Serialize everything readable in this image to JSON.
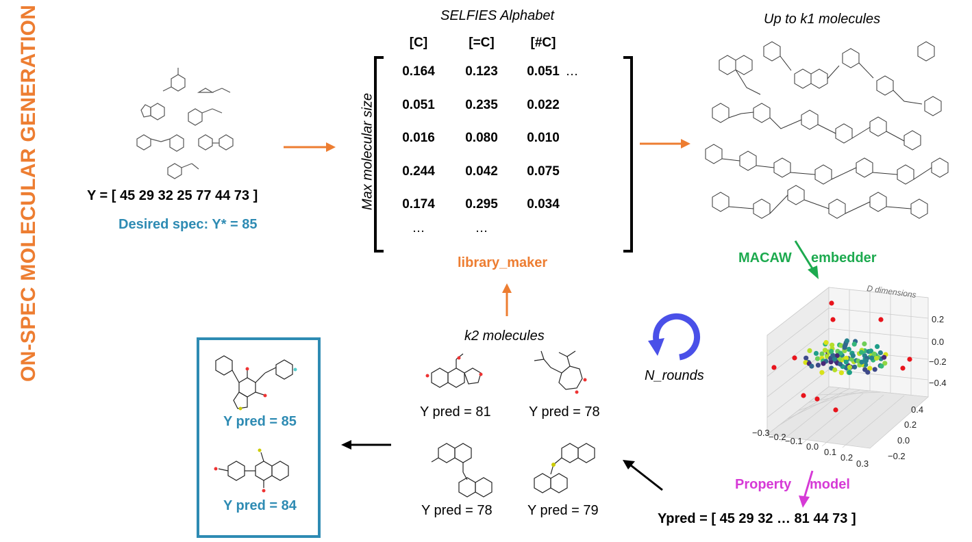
{
  "vertical_title": "ON-SPEC MOLECULAR GENERATION",
  "left": {
    "y_array": "Y = [ 45  29  32  25  77  44  73 ]",
    "desired_spec": "Desired spec: Y* = 85"
  },
  "matrix": {
    "title": "SELFIES Alphabet",
    "side_label": "Max molecular size",
    "headers": [
      "[C]",
      "[=C]",
      "[#C]"
    ],
    "rows": [
      [
        "0.164",
        "0.123",
        "0.051",
        "…"
      ],
      [
        "0.051",
        "0.235",
        "0.022",
        ""
      ],
      [
        "0.016",
        "0.080",
        "0.010",
        ""
      ],
      [
        "0.244",
        "0.042",
        "0.075",
        ""
      ],
      [
        "0.174",
        "0.295",
        "0.034",
        ""
      ],
      [
        "…",
        "…",
        "",
        ""
      ]
    ],
    "caption": "library_maker"
  },
  "right": {
    "k1_label": "Up to k1 molecules",
    "embedder_a": "MACAW",
    "embedder_b": "embedder",
    "d_dimensions": "D dimensions",
    "z_ticks": [
      "0.2",
      "0.0",
      "−0.2",
      "−0.4"
    ],
    "y_ticks": [
      "0.4",
      "0.2",
      "0.0",
      "−0.2"
    ],
    "x_ticks": [
      "−0.3",
      "−0.2",
      "−0.1",
      "0.0",
      "0.1",
      "0.2",
      "0.3"
    ],
    "property_a": "Property",
    "property_b": "model",
    "ypred_array": "Ypred = [ 45  29  32  …  81  44  73 ]"
  },
  "center": {
    "rounds_label": "N_rounds",
    "k2_label": "k2 molecules",
    "preds": [
      "Y pred = 81",
      "Y pred = 78",
      "Y pred = 78",
      "Y pred = 79"
    ]
  },
  "result_box": {
    "pred1": "Y pred = 85",
    "pred2": "Y pred = 84"
  },
  "colors": {
    "orange": "#ED7D31",
    "teal": "#2E8BB3",
    "green": "#1DAA4F",
    "magenta": "#D63AD6",
    "blue_cycle": "#4A50E8"
  }
}
